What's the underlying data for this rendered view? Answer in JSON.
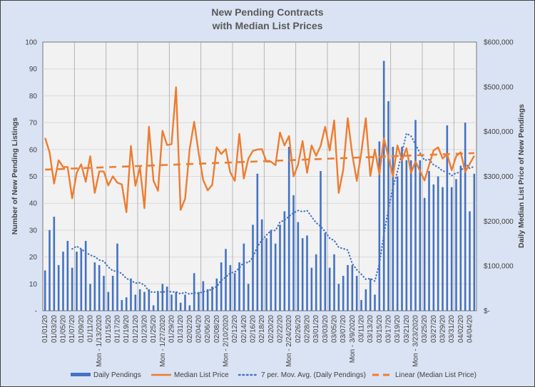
{
  "chart_data": {
    "type": "bar+line",
    "title": [
      "New Pending Contracts",
      "with Median List Prices"
    ],
    "ylabel_left": "Number of New Pending Listings",
    "ylabel_right": "Daily Median List Price of New Pendings",
    "ylim_left": [
      0,
      100
    ],
    "yticks_left": [
      "-",
      "10",
      "20",
      "30",
      "40",
      "50",
      "60",
      "70",
      "80",
      "90",
      "100"
    ],
    "ylim_right": [
      0,
      600000
    ],
    "yticks_right": [
      "$-",
      "$100,000",
      "$200,000",
      "$300,000",
      "$400,000",
      "$500,000",
      "$600,000"
    ],
    "grid": true,
    "legend_position": "bottom",
    "x_labels": [
      "01/01/20",
      "01/03/20",
      "01/05/20",
      "01/07/20",
      "01/09/20",
      "01/11/20",
      "Mon - 1/13/2020",
      "01/15/20",
      "01/17/20",
      "01/19/20",
      "01/21/20",
      "01/23/20",
      "01/25/20",
      "Mon - 1/27/2020",
      "01/29/20",
      "01/31/20",
      "02/02/20",
      "02/04/20",
      "02/06/20",
      "02/08/20",
      "Mon - 2/10/2020",
      "02/12/20",
      "02/14/20",
      "02/16/20",
      "02/18/20",
      "02/20/20",
      "02/22/20",
      "Mon - 2/24/2020",
      "02/26/20",
      "02/28/20",
      "03/01/20",
      "03/03/20",
      "03/05/20",
      "03/07/20",
      "Mon - 3/9/2020",
      "03/11/20",
      "03/13/20",
      "03/15/20",
      "03/17/20",
      "03/19/20",
      "03/21/20",
      "Mon - 3/23/2020",
      "03/25/20",
      "03/27/20",
      "03/29/20",
      "03/31/20",
      "04/02/20",
      "04/04/20"
    ],
    "series": [
      {
        "name": "Daily Pendings",
        "type": "bar",
        "axis": "left",
        "color": "#4472c4",
        "values": [
          15,
          30,
          35,
          17,
          22,
          26,
          16,
          22,
          23,
          26,
          10,
          18,
          17,
          13,
          7,
          13,
          25,
          4,
          5,
          12,
          6,
          8,
          7,
          8,
          2,
          7,
          10,
          9,
          6,
          7,
          3,
          6,
          2,
          14,
          7,
          11,
          8,
          9,
          12,
          18,
          23,
          17,
          14,
          18,
          25,
          10,
          32,
          51,
          34,
          27,
          30,
          25,
          32,
          37,
          61,
          43,
          33,
          27,
          28,
          16,
          21,
          52,
          29,
          16,
          21,
          10,
          13,
          17,
          17,
          13,
          4,
          8,
          12,
          6,
          63,
          93,
          78,
          61,
          50,
          61,
          56,
          56,
          71,
          56,
          42,
          52,
          47,
          50,
          46,
          69,
          46,
          49,
          54,
          70,
          37,
          51
        ]
      },
      {
        "name": "Median List Price",
        "type": "line",
        "axis": "right",
        "color": "#ed7d31",
        "values": [
          386000,
          354000,
          284000,
          336000,
          321000,
          321000,
          251000,
          308000,
          327000,
          288000,
          345000,
          263000,
          311000,
          311000,
          280000,
          300000,
          286000,
          282000,
          220000,
          368000,
          279000,
          320000,
          229000,
          411000,
          290000,
          268000,
          402000,
          370000,
          372000,
          499000,
          225000,
          250000,
          360000,
          422000,
          352000,
          292000,
          269000,
          281000,
          365000,
          350000,
          361000,
          309000,
          290000,
          395000,
          295000,
          340000,
          357000,
          360000,
          361000,
          333000,
          333000,
          325000,
          398000,
          369000,
          390000,
          300000,
          326000,
          379000,
          308000,
          369000,
          346000,
          368000,
          411000,
          358000,
          425000,
          263000,
          315000,
          430000,
          349000,
          290000,
          353000,
          430000,
          301000,
          360000,
          305000,
          385000,
          344000,
          300000,
          369000,
          336000,
          363000,
          308000,
          333000,
          312000,
          291000,
          325000,
          358000,
          365000,
          340000,
          350000,
          314000,
          345000,
          354000,
          310000,
          328000,
          346000
        ]
      },
      {
        "name": "7 per. Mov. Avg. (Daily Pendings)",
        "type": "moving_average",
        "period": 7,
        "of": "Daily Pendings",
        "color": "#4472c4"
      },
      {
        "name": "Linear (Median List Price)",
        "type": "linear_trend",
        "of": "Median List Price",
        "color": "#ed7d31"
      }
    ]
  }
}
